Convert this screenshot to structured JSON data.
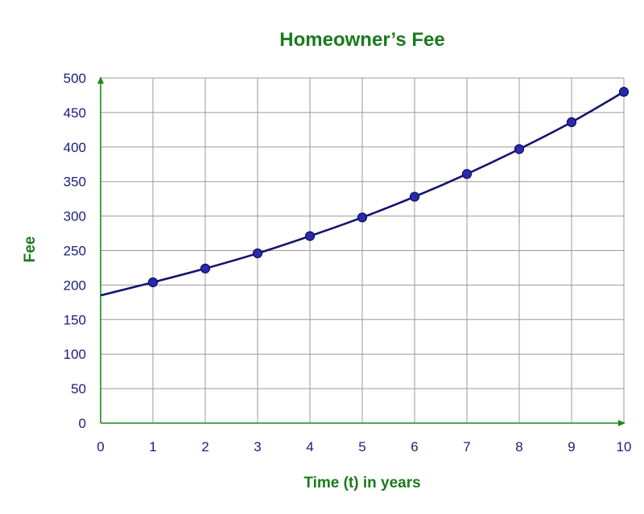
{
  "chart_data": {
    "type": "line",
    "title": "Homeowner’s Fee",
    "xlabel": "Time (t) in years",
    "ylabel": "Fee",
    "xlim": [
      0,
      10
    ],
    "ylim": [
      0,
      500
    ],
    "x_ticks": [
      "0",
      "1",
      "2",
      "3",
      "4",
      "5",
      "6",
      "7",
      "8",
      "9",
      "10"
    ],
    "y_ticks": [
      "0",
      "50",
      "100",
      "150",
      "200",
      "250",
      "300",
      "350",
      "400",
      "450",
      "500"
    ],
    "grid": true,
    "curve_start": {
      "x": 0,
      "y": 185
    },
    "series": [
      {
        "x": [
          1,
          2,
          3,
          4,
          5,
          6,
          7,
          8,
          9,
          10
        ],
        "values": [
          204,
          224,
          246,
          271,
          298,
          328,
          361,
          397,
          436,
          480
        ]
      }
    ],
    "colors": {
      "title": "#1a7a1a",
      "axis": "#1a8a1a",
      "line": "#14146e",
      "marker": "#2a2ab0",
      "tick_text": "#1c1c7a",
      "grid": "#9a9a9a"
    }
  }
}
